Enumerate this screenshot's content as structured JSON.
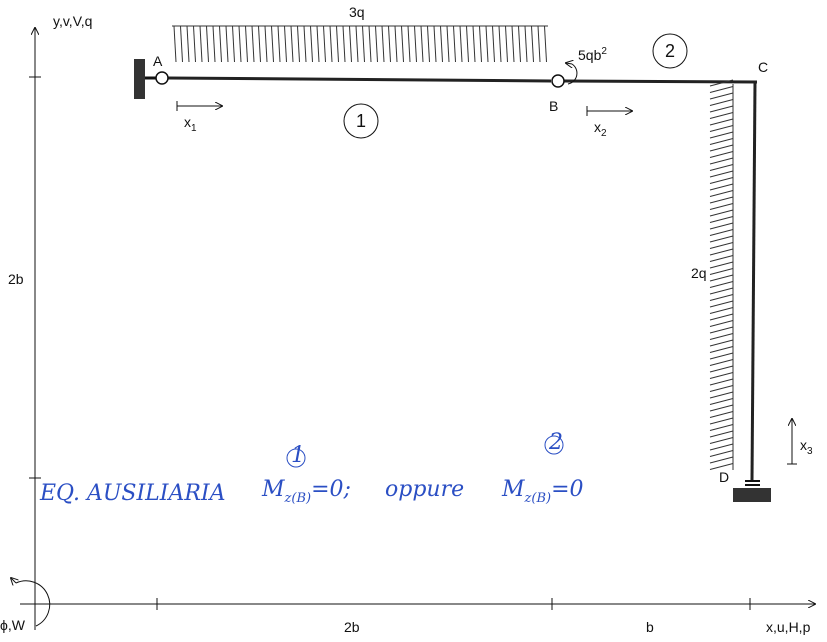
{
  "axes": {
    "y": "y,v,V,q",
    "x": "x,u,H,p",
    "rotation": "ϕ,W"
  },
  "dimensions": {
    "left": "2b",
    "bottom_1": "2b",
    "bottom_2": "b"
  },
  "points": {
    "A": "A",
    "B": "B",
    "C": "C",
    "D": "D"
  },
  "loads": {
    "top": "3q",
    "side": "2q",
    "moment": {
      "base": "5qb",
      "sup": "2"
    }
  },
  "members": {
    "m1": "1",
    "m2": "2"
  },
  "local_axes": {
    "x1": {
      "base": "x",
      "sub": "1"
    },
    "x2": {
      "base": "x",
      "sub": "2"
    },
    "x3": {
      "base": "x",
      "sub": "3"
    }
  },
  "note": {
    "label": "EQ. AUSILIARIA",
    "eq1": {
      "symbol": "M",
      "sub": "z(B)",
      "sup": "1",
      "rest": "=0;"
    },
    "word": "oppure",
    "eq2": {
      "symbol": "M",
      "sub": "z(B)",
      "sup": "2",
      "rest": "=0"
    }
  }
}
